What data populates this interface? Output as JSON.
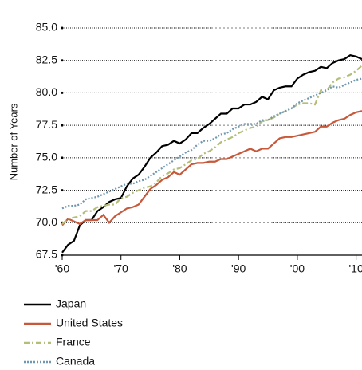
{
  "chart_data": {
    "type": "line",
    "ylabel": "Number of Years",
    "x": [
      1960,
      1961,
      1962,
      1963,
      1964,
      1965,
      1966,
      1967,
      1968,
      1969,
      1970,
      1971,
      1972,
      1973,
      1974,
      1975,
      1976,
      1977,
      1978,
      1979,
      1980,
      1981,
      1982,
      1983,
      1984,
      1985,
      1986,
      1987,
      1988,
      1989,
      1990,
      1991,
      1992,
      1993,
      1994,
      1995,
      1996,
      1997,
      1998,
      1999,
      2000,
      2001,
      2002,
      2003,
      2004,
      2005,
      2006,
      2007,
      2008,
      2009,
      2010,
      2011
    ],
    "series": [
      {
        "name": "Japan",
        "color": "#000000",
        "linestyle": "solid",
        "values": [
          67.7,
          68.3,
          68.6,
          69.8,
          70.2,
          70.2,
          70.9,
          71.2,
          71.6,
          71.8,
          71.9,
          72.8,
          73.4,
          73.7,
          74.3,
          75.0,
          75.4,
          75.9,
          76.0,
          76.3,
          76.1,
          76.4,
          76.9,
          76.9,
          77.3,
          77.6,
          78.0,
          78.4,
          78.4,
          78.8,
          78.8,
          79.1,
          79.1,
          79.3,
          79.7,
          79.5,
          80.2,
          80.4,
          80.5,
          80.5,
          81.1,
          81.4,
          81.6,
          81.7,
          82.0,
          81.9,
          82.3,
          82.5,
          82.6,
          82.9,
          82.8,
          82.6
        ]
      },
      {
        "name": "United States",
        "color": "#c8583a",
        "linestyle": "solid",
        "values": [
          69.8,
          70.3,
          70.1,
          69.9,
          70.2,
          70.2,
          70.2,
          70.6,
          70.0,
          70.5,
          70.8,
          71.1,
          71.2,
          71.4,
          72.0,
          72.6,
          72.9,
          73.3,
          73.5,
          73.9,
          73.7,
          74.1,
          74.5,
          74.6,
          74.6,
          74.7,
          74.7,
          74.9,
          74.9,
          75.1,
          75.3,
          75.5,
          75.7,
          75.5,
          75.7,
          75.7,
          76.1,
          76.5,
          76.6,
          76.6,
          76.7,
          76.8,
          76.9,
          77.0,
          77.4,
          77.4,
          77.7,
          77.9,
          78.0,
          78.3,
          78.5,
          78.6
        ]
      },
      {
        "name": "France",
        "color": "#b4be78",
        "linestyle": "dashdot",
        "values": [
          69.9,
          70.3,
          70.4,
          70.5,
          70.9,
          70.9,
          71.2,
          71.3,
          71.4,
          71.4,
          71.9,
          72.0,
          72.3,
          72.5,
          72.7,
          72.8,
          73.1,
          73.6,
          73.8,
          74.1,
          74.2,
          74.5,
          74.8,
          74.9,
          75.3,
          75.5,
          75.8,
          76.2,
          76.4,
          76.6,
          76.9,
          77.1,
          77.3,
          77.4,
          77.8,
          77.9,
          78.1,
          78.4,
          78.6,
          78.8,
          79.1,
          79.2,
          79.2,
          79.1,
          80.2,
          80.2,
          80.8,
          81.1,
          81.2,
          81.4,
          81.7,
          82.1
        ]
      },
      {
        "name": "Canada",
        "color": "#6f97b0",
        "linestyle": "dotted",
        "values": [
          71.1,
          71.3,
          71.3,
          71.4,
          71.8,
          71.9,
          72.0,
          72.2,
          72.4,
          72.6,
          72.8,
          73.0,
          73.0,
          73.2,
          73.3,
          73.6,
          73.9,
          74.2,
          74.5,
          74.8,
          75.1,
          75.4,
          75.6,
          76.0,
          76.3,
          76.3,
          76.5,
          76.8,
          76.9,
          77.2,
          77.4,
          77.6,
          77.6,
          77.6,
          77.9,
          77.9,
          78.2,
          78.4,
          78.6,
          78.8,
          79.2,
          79.4,
          79.6,
          79.8,
          80.0,
          80.2,
          80.5,
          80.4,
          80.6,
          80.8,
          81.0,
          81.1
        ]
      }
    ],
    "xlim": [
      1960,
      2011
    ],
    "xticks": [
      {
        "value": 1960,
        "label": "'60"
      },
      {
        "value": 1970,
        "label": "'70"
      },
      {
        "value": 1980,
        "label": "'80"
      },
      {
        "value": 1990,
        "label": "'90"
      },
      {
        "value": 2000,
        "label": "'00"
      },
      {
        "value": 2010,
        "label": "'10"
      }
    ],
    "ylim": [
      67.5,
      85
    ],
    "yticks": [
      67.5,
      {
        "value": 70,
        "label": "70.0"
      },
      72.5,
      {
        "value": 75,
        "label": "75.0"
      },
      77.5,
      {
        "value": 80,
        "label": "80.0"
      },
      82.5,
      {
        "value": 85,
        "label": "85.0"
      }
    ],
    "grid": true
  }
}
